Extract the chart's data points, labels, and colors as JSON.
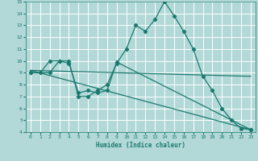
{
  "background_color": "#b2d8d8",
  "grid_color": "#ffffff",
  "line_color": "#1a7a6e",
  "xlabel": "Humidex (Indice chaleur)",
  "xlim": [
    -0.5,
    23.5
  ],
  "ylim": [
    4,
    15
  ],
  "xticks": [
    0,
    1,
    2,
    3,
    4,
    5,
    6,
    7,
    8,
    9,
    10,
    11,
    12,
    13,
    14,
    15,
    16,
    17,
    18,
    19,
    20,
    21,
    22,
    23
  ],
  "yticks": [
    4,
    5,
    6,
    7,
    8,
    9,
    10,
    11,
    12,
    13,
    14,
    15
  ],
  "line1_x": [
    0,
    1,
    2,
    3,
    4,
    5,
    6,
    7,
    8,
    9,
    10,
    11,
    12,
    13,
    14,
    15,
    16,
    17,
    18,
    19,
    20,
    21,
    22,
    23
  ],
  "line1_y": [
    9,
    9,
    10,
    10,
    10,
    7,
    7,
    7.5,
    8,
    9.8,
    11,
    13,
    12.5,
    13.5,
    15,
    13.8,
    12.5,
    11,
    8.7,
    7.5,
    6,
    5,
    4.3,
    4.2
  ],
  "line2_x": [
    0,
    2,
    3,
    4,
    5,
    6,
    7,
    8,
    9,
    23
  ],
  "line2_y": [
    9,
    9,
    10,
    9.8,
    7.3,
    7.5,
    7.3,
    7.5,
    9.9,
    4.2
  ],
  "line3_x": [
    0,
    23
  ],
  "line3_y": [
    9.2,
    8.7
  ],
  "line4_x": [
    0,
    23
  ],
  "line4_y": [
    9.2,
    4.2
  ]
}
